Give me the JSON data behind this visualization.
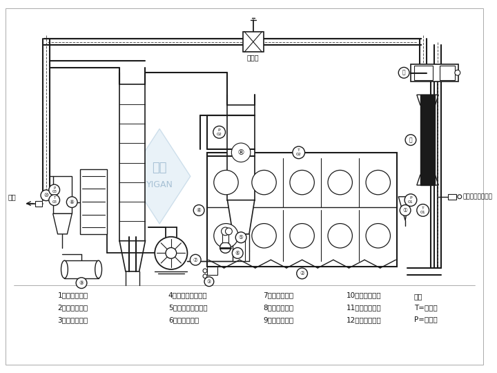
{
  "bg_color": "#ffffff",
  "lc": "#1a1a1a",
  "legend_items": [
    "1、密闭进料器",
    "2、沸腾床主机",
    "3、密闭出料器",
    "4、一级布袋除尘器",
    "5、二级布袋除尘器",
    "6、密闭出料阀",
    "7、密闭引风机",
    "8、多级冷凝器",
    "9、溶媒回收罐",
    "10、二级液凝器",
    "11、密闭送风机",
    "12、密闭加热器"
  ],
  "label_nitrogen": "氮气阀",
  "label_oxygen": "氧浓度在线检测仪",
  "label_exhaust": "排空"
}
